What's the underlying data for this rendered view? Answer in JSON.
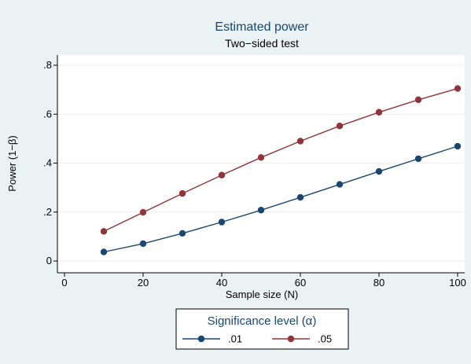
{
  "chart_data": {
    "type": "line",
    "title": "Estimated power",
    "subtitle": "Two−sided test",
    "xlabel": "Sample size (N)",
    "ylabel": "Power (1−β)",
    "xlim": [
      0,
      100
    ],
    "ylim": [
      0,
      0.8
    ],
    "xticks": [
      0,
      20,
      40,
      60,
      80,
      100
    ],
    "xtick_labels": [
      "0",
      "20",
      "40",
      "60",
      "80",
      "100"
    ],
    "yticks": [
      0,
      0.2,
      0.4,
      0.6,
      0.8
    ],
    "ytick_labels": [
      "0",
      ".2",
      ".4",
      ".6",
      ".8"
    ],
    "grid": true,
    "legend_title": "Significance level (α)",
    "legend_position": "bottom",
    "x": [
      10,
      20,
      30,
      40,
      50,
      60,
      70,
      80,
      90,
      100
    ],
    "series": [
      {
        "name": ".01",
        "color": "#1a476f",
        "values": [
          0.037,
          0.071,
          0.113,
          0.159,
          0.208,
          0.26,
          0.313,
          0.366,
          0.418,
          0.469
        ]
      },
      {
        "name": ".05",
        "color": "#90353b",
        "values": [
          0.121,
          0.199,
          0.276,
          0.351,
          0.423,
          0.49,
          0.552,
          0.608,
          0.659,
          0.705
        ]
      }
    ]
  }
}
